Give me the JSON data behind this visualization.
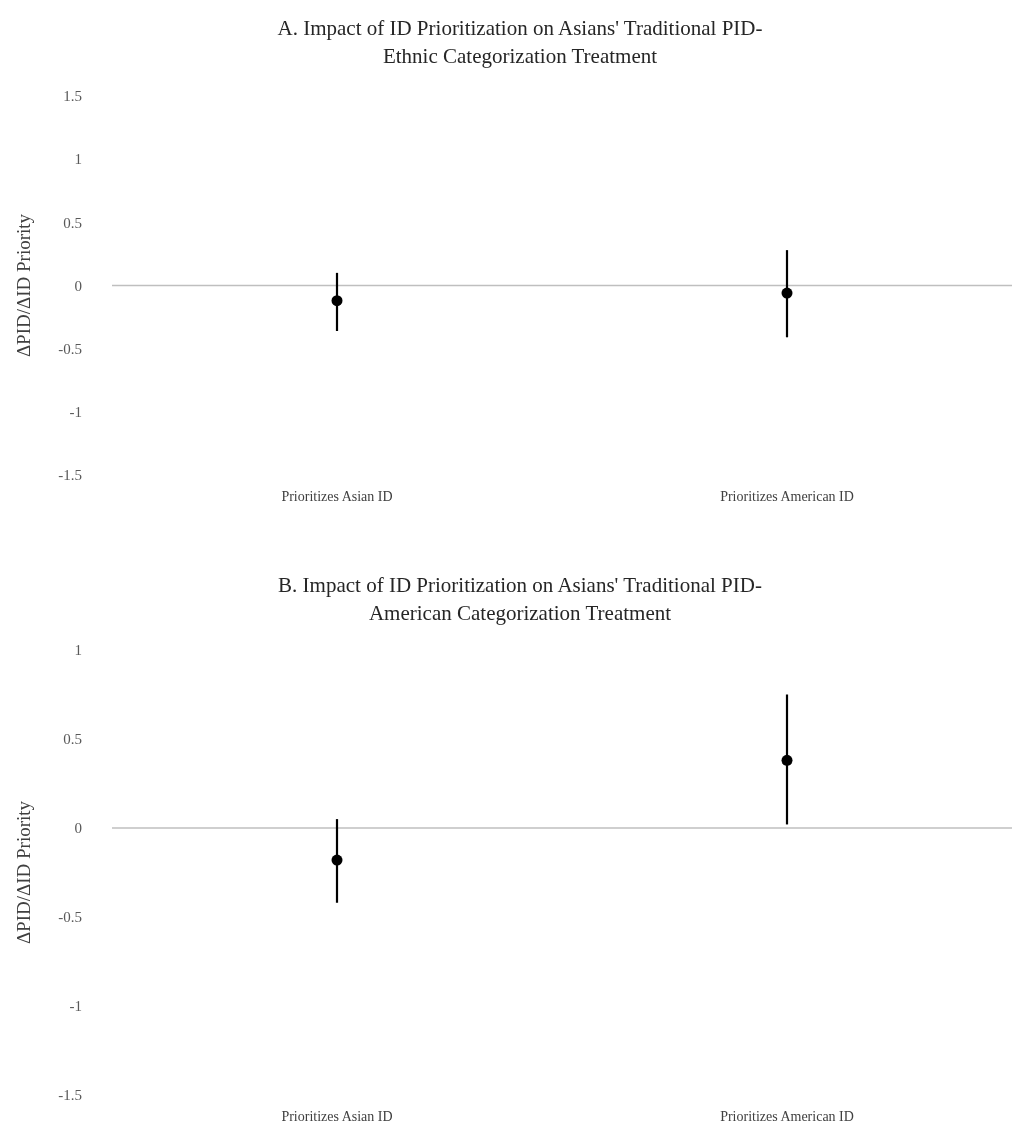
{
  "chart_data": [
    {
      "type": "scatter",
      "title": "A. Impact of ID Prioritization on Asians' Traditional PID-\nEthnic Categorization Treatment",
      "ylabel": "ΔPID/ΔID Priority",
      "categories": [
        "Prioritizes Asian ID",
        "Prioritizes American ID"
      ],
      "values": [
        -0.12,
        -0.06
      ],
      "errors": [
        [
          -0.36,
          0.1
        ],
        [
          -0.41,
          0.28
        ]
      ],
      "color": "#000000",
      "marker": "circle",
      "ylim": [
        -1.5,
        1.5
      ],
      "yticks": [
        -1.5,
        -1,
        -0.5,
        0,
        0.5,
        1,
        1.5
      ],
      "ref_lines": [
        {
          "axis": "y",
          "value": 0,
          "color": "#bfbfbf"
        }
      ],
      "grid": false
    },
    {
      "type": "scatter",
      "title": "B. Impact of ID Prioritization on Asians' Traditional PID-\nAmerican Categorization Treatment",
      "ylabel": "ΔPID/ΔID Priority",
      "categories": [
        "Prioritizes Asian ID",
        "Prioritizes American ID"
      ],
      "values": [
        -0.18,
        0.38
      ],
      "errors": [
        [
          -0.42,
          0.05
        ],
        [
          0.02,
          0.75
        ]
      ],
      "color": "#000000",
      "marker": "circle",
      "ylim": [
        -1.5,
        1
      ],
      "yticks": [
        -1.5,
        -1,
        -0.5,
        0,
        0.5,
        1
      ],
      "ref_lines": [
        {
          "axis": "y",
          "value": 0,
          "color": "#bfbfbf"
        }
      ],
      "grid": false
    }
  ]
}
